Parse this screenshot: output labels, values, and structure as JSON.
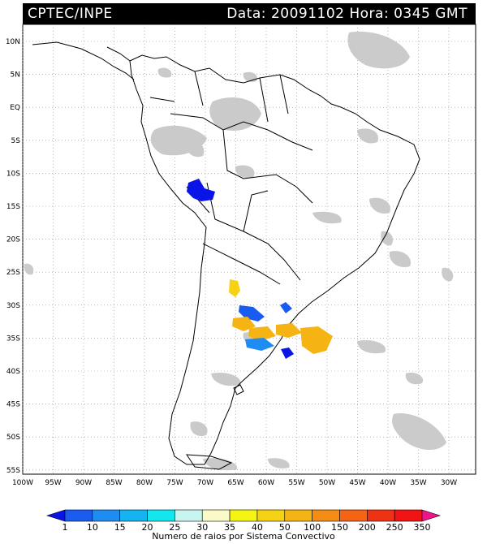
{
  "header": {
    "source": "CPTEC/INPE",
    "datetime": "Data: 20091102 Hora: 0345 GMT"
  },
  "lat_ticks": [
    "10N",
    "5N",
    "EQ",
    "5S",
    "10S",
    "15S",
    "20S",
    "25S",
    "30S",
    "35S",
    "40S",
    "45S",
    "50S",
    "55S"
  ],
  "lon_ticks": [
    "100W",
    "95W",
    "90W",
    "85W",
    "80W",
    "75W",
    "70W",
    "65W",
    "60W",
    "55W",
    "50W",
    "45W",
    "40W",
    "35W",
    "30W"
  ],
  "legend": {
    "values": [
      "1",
      "10",
      "15",
      "20",
      "25",
      "30",
      "35",
      "40",
      "50",
      "100",
      "150",
      "200",
      "250",
      "350"
    ],
    "colors": [
      "#0a14e6",
      "#1a5cf0",
      "#1e8cf0",
      "#14b4f0",
      "#14e6f0",
      "#c8f5f0",
      "#fafac8",
      "#f5f514",
      "#f5d214",
      "#f5b414",
      "#f58c14",
      "#f56414",
      "#f03214",
      "#f01414",
      "#f0148c"
    ],
    "title": "Numero de raios por Sistema Convectivo"
  },
  "colors": {
    "cloud": "#c8c8c8",
    "land_outline": "#000000",
    "grid": "#888888"
  }
}
